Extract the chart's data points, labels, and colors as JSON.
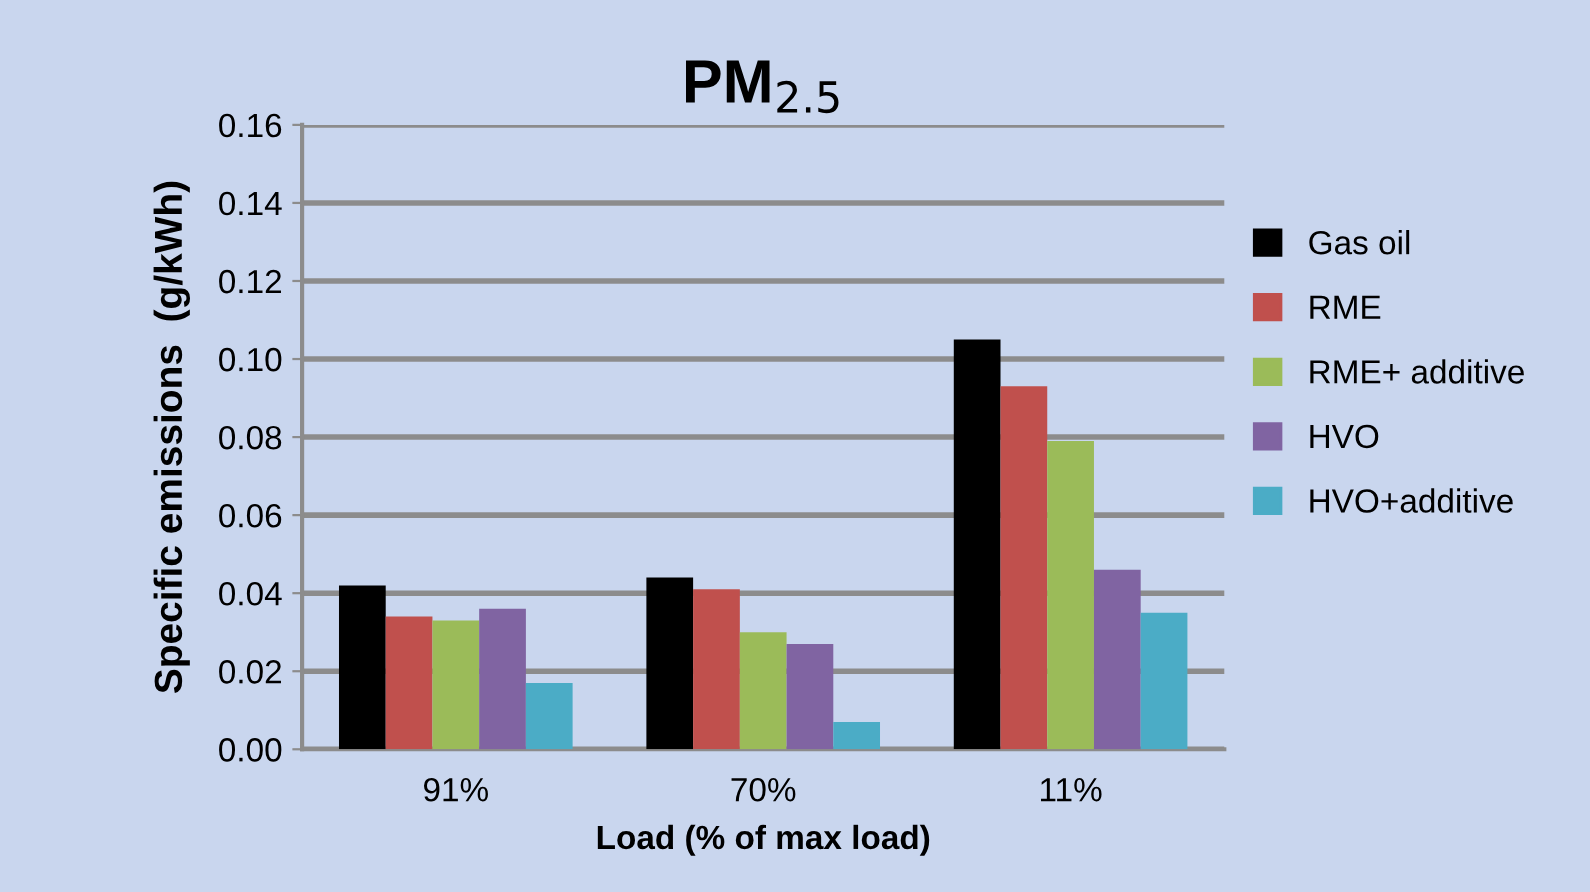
{
  "chart_data": {
    "type": "bar",
    "title": "PM$_{2.5}$",
    "xlabel": "Load (% of max load)",
    "ylabel": "Specific emissions  (g/kWh)",
    "categories": [
      "91%",
      "70%",
      "11%"
    ],
    "series": [
      {
        "name": "Gas oil",
        "color": "#000000",
        "values": [
          0.042,
          0.044,
          0.105
        ]
      },
      {
        "name": "RME",
        "color": "#c0504d",
        "values": [
          0.034,
          0.041,
          0.093
        ]
      },
      {
        "name": "RME+ additive",
        "color": "#9bbb59",
        "values": [
          0.033,
          0.03,
          0.079
        ]
      },
      {
        "name": "HVO",
        "color": "#8064a2",
        "values": [
          0.036,
          0.027,
          0.046
        ]
      },
      {
        "name": "HVO+additive",
        "color": "#4bacc6",
        "values": [
          0.017,
          0.007,
          0.035
        ]
      }
    ],
    "ylim": [
      0,
      0.16
    ],
    "yticks": [
      {
        "value": 0,
        "label": "0.00"
      },
      {
        "value": 0.02,
        "label": "0.02"
      },
      {
        "value": 0.04,
        "label": "0.04"
      },
      {
        "value": 0.06,
        "label": "0.06"
      },
      {
        "value": 0.08,
        "label": "0.08"
      },
      {
        "value": 0.1,
        "label": "0.10"
      },
      {
        "value": 0.12,
        "label": "0.12"
      },
      {
        "value": 0.14,
        "label": "0.14"
      },
      {
        "value": 0.16,
        "label": "0.16"
      }
    ],
    "grid": "y",
    "legend": "right"
  }
}
